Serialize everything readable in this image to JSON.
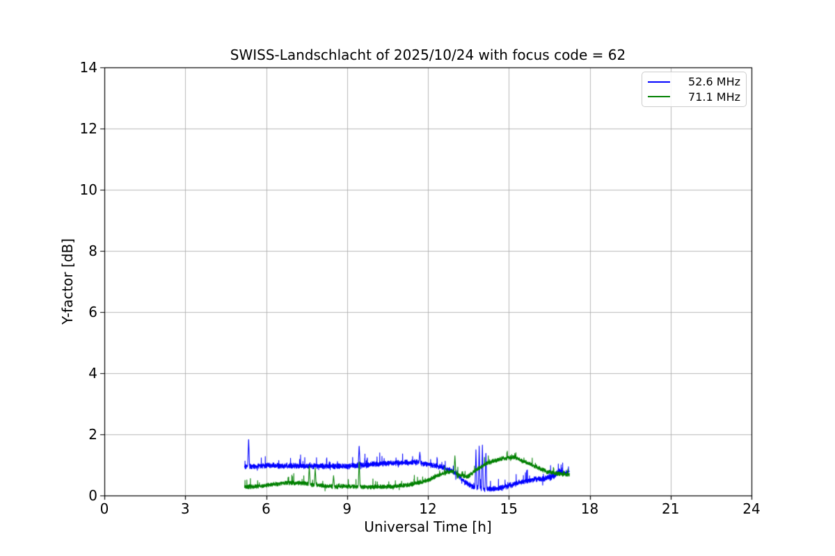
{
  "figure": {
    "background": "#ffffff"
  },
  "chart_data": {
    "type": "line",
    "title": "SWISS-Landschlacht of 2025/10/24 with focus code = 62",
    "xlabel": "Universal Time [h]",
    "ylabel": "Y-factor [dB]",
    "xlim": [
      0,
      24
    ],
    "ylim": [
      0,
      14
    ],
    "xticks": [
      0,
      3,
      6,
      9,
      12,
      15,
      18,
      21,
      24
    ],
    "yticks": [
      0,
      2,
      4,
      6,
      8,
      10,
      12,
      14
    ],
    "grid": true,
    "grid_color": "#b0b0b0",
    "frame_color": "#000000",
    "legend": {
      "position": "top-right",
      "entries": [
        {
          "label": "52.6 MHz",
          "color": "#0000ff"
        },
        {
          "label": "71.1 MHz",
          "color": "#008000"
        }
      ]
    },
    "series": [
      {
        "name": "52.6 MHz",
        "color": "#0000ff",
        "x_start": 5.2,
        "x_end": 17.25,
        "noise_amplitude": 0.1,
        "spike_halfwidth": 0.035,
        "keyframes": [
          [
            5.2,
            0.95
          ],
          [
            6.0,
            0.98
          ],
          [
            7.0,
            0.97
          ],
          [
            8.0,
            0.96
          ],
          [
            9.0,
            0.95
          ],
          [
            9.7,
            1.0
          ],
          [
            10.3,
            1.05
          ],
          [
            11.0,
            1.08
          ],
          [
            11.6,
            1.08
          ],
          [
            12.0,
            1.02
          ],
          [
            12.6,
            0.92
          ],
          [
            13.0,
            0.75
          ],
          [
            13.4,
            0.42
          ],
          [
            13.7,
            0.28
          ],
          [
            14.1,
            0.2
          ],
          [
            14.5,
            0.22
          ],
          [
            15.0,
            0.32
          ],
          [
            15.5,
            0.45
          ],
          [
            16.0,
            0.52
          ],
          [
            16.5,
            0.58
          ],
          [
            16.7,
            0.62
          ],
          [
            16.85,
            0.82
          ],
          [
            17.05,
            0.72
          ],
          [
            17.25,
            0.78
          ]
        ],
        "spikes": [
          [
            5.35,
            1.88
          ],
          [
            9.45,
            1.65
          ],
          [
            11.7,
            1.42
          ],
          [
            13.78,
            1.5
          ],
          [
            13.9,
            1.62
          ],
          [
            14.02,
            1.65
          ],
          [
            14.15,
            1.45
          ]
        ]
      },
      {
        "name": "71.1 MHz",
        "color": "#008000",
        "x_start": 5.2,
        "x_end": 17.25,
        "noise_amplitude": 0.08,
        "spike_halfwidth": 0.035,
        "keyframes": [
          [
            5.2,
            0.27
          ],
          [
            6.0,
            0.33
          ],
          [
            6.8,
            0.42
          ],
          [
            7.4,
            0.4
          ],
          [
            8.2,
            0.3
          ],
          [
            9.0,
            0.3
          ],
          [
            10.0,
            0.28
          ],
          [
            10.7,
            0.3
          ],
          [
            11.3,
            0.35
          ],
          [
            12.0,
            0.5
          ],
          [
            12.5,
            0.7
          ],
          [
            12.85,
            0.8
          ],
          [
            13.15,
            0.68
          ],
          [
            13.45,
            0.6
          ],
          [
            13.8,
            0.85
          ],
          [
            14.3,
            1.1
          ],
          [
            14.8,
            1.22
          ],
          [
            15.2,
            1.25
          ],
          [
            15.6,
            1.1
          ],
          [
            16.0,
            0.95
          ],
          [
            16.4,
            0.78
          ],
          [
            16.8,
            0.72
          ],
          [
            17.25,
            0.68
          ]
        ],
        "spikes": [
          [
            7.6,
            0.97
          ],
          [
            7.82,
            0.9
          ],
          [
            8.5,
            0.65
          ],
          [
            9.45,
            1.15
          ],
          [
            13.0,
            1.3
          ]
        ]
      }
    ]
  }
}
